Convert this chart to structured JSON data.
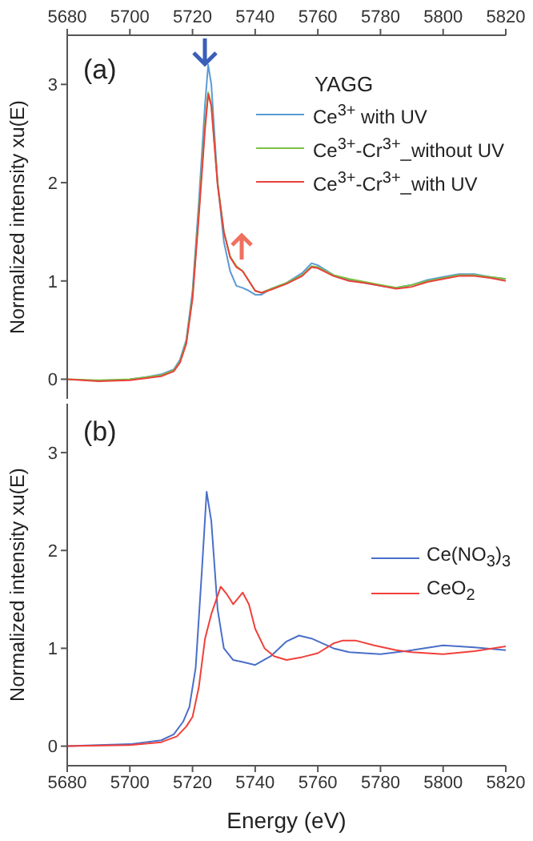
{
  "chart_data": [
    {
      "type": "line",
      "ylabel": "Normalized intensity xu(E)",
      "legend_title": "YAGG",
      "annotations": [
        "(a)"
      ],
      "xlim": [
        5680,
        5820
      ],
      "xticks": [
        5680,
        5700,
        5720,
        5740,
        5760,
        5780,
        5800,
        5820
      ],
      "tick_labels": "y",
      "x2lim": [
        5680,
        5820
      ],
      "x2ticks": [
        5680,
        5700,
        5720,
        5740,
        5760,
        5780,
        5800,
        5820
      ],
      "ylim": [
        -0.2,
        3.5
      ],
      "yticks": [
        0,
        1,
        2,
        3
      ],
      "legend": "top right",
      "series": [
        {
          "name": "Ce$^{3+}$ with UV",
          "color": "#5b9bd5",
          "x": [
            5700,
            5705,
            5710,
            5714,
            5716,
            5718,
            5720,
            5722,
            5724,
            5725,
            5726,
            5727,
            5728,
            5730,
            5732,
            5734,
            5736,
            5738,
            5740,
            5742,
            5745,
            5750,
            5755,
            5758,
            5760,
            5765,
            5770,
            5775,
            5780,
            5785,
            5790,
            5795,
            5800,
            5805,
            5810,
            5815,
            5820
          ],
          "values": [
            0,
            0.02,
            0.05,
            0.1,
            0.2,
            0.4,
            0.9,
            1.8,
            2.8,
            3.2,
            3.0,
            2.5,
            2.0,
            1.4,
            1.1,
            0.95,
            0.93,
            0.9,
            0.86,
            0.86,
            0.92,
            0.98,
            1.08,
            1.18,
            1.16,
            1.06,
            1.01,
            0.98,
            0.95,
            0.93,
            0.96,
            1.01,
            1.04,
            1.07,
            1.07,
            1.04,
            1.02
          ]
        },
        {
          "name": "Ce$^{3+}$-Cr$^{3+}$_without UV",
          "color": "#7ac143",
          "x": [
            5680,
            5690,
            5700,
            5705,
            5710,
            5714,
            5716,
            5718,
            5720,
            5722,
            5724,
            5725,
            5726,
            5727,
            5728,
            5730,
            5732,
            5734,
            5736,
            5738,
            5740,
            5742,
            5745,
            5750,
            5755,
            5758,
            5760,
            5765,
            5770,
            5775,
            5780,
            5785,
            5790,
            5795,
            5800,
            5805,
            5810,
            5815,
            5820
          ],
          "values": [
            0,
            -0.01,
            0,
            0.02,
            0.04,
            0.09,
            0.18,
            0.38,
            0.85,
            1.7,
            2.6,
            2.92,
            2.8,
            2.4,
            2.0,
            1.5,
            1.25,
            1.15,
            1.1,
            1.0,
            0.9,
            0.88,
            0.92,
            0.98,
            1.06,
            1.15,
            1.14,
            1.06,
            1.02,
            0.99,
            0.96,
            0.93,
            0.96,
            1.0,
            1.03,
            1.06,
            1.06,
            1.04,
            1.02
          ]
        },
        {
          "name": "Ce$^{3+}$-Cr$^{3+}$_with UV",
          "color": "#e8413c",
          "x": [
            5680,
            5690,
            5700,
            5705,
            5710,
            5714,
            5716,
            5718,
            5720,
            5722,
            5724,
            5725,
            5726,
            5727,
            5728,
            5730,
            5732,
            5734,
            5736,
            5738,
            5740,
            5742,
            5745,
            5750,
            5755,
            5758,
            5760,
            5765,
            5770,
            5775,
            5780,
            5785,
            5790,
            5795,
            5800,
            5805,
            5810,
            5815,
            5820
          ],
          "values": [
            0,
            -0.02,
            -0.01,
            0.01,
            0.03,
            0.08,
            0.17,
            0.36,
            0.82,
            1.65,
            2.55,
            2.9,
            2.78,
            2.38,
            1.98,
            1.5,
            1.24,
            1.14,
            1.1,
            1.0,
            0.9,
            0.88,
            0.91,
            0.97,
            1.05,
            1.14,
            1.13,
            1.05,
            1.0,
            0.98,
            0.95,
            0.92,
            0.94,
            0.99,
            1.02,
            1.05,
            1.05,
            1.03,
            1.0
          ]
        }
      ]
    },
    {
      "type": "line",
      "xlabel": "Energy (eV)",
      "ylabel": "Normalized intensity xu(E)",
      "annotations": [
        "(b)"
      ],
      "xlim": [
        5680,
        5820
      ],
      "xticks": [
        5680,
        5700,
        5720,
        5740,
        5760,
        5780,
        5800,
        5820
      ],
      "ylim": [
        -0.2,
        3.5
      ],
      "yticks": [
        0,
        1,
        2,
        3
      ],
      "legend": "right",
      "series": [
        {
          "name": "Ce(NO$_{3}$)$_{3}$",
          "color": "#4a6fc8",
          "x": [
            5680,
            5700,
            5710,
            5714,
            5717,
            5719,
            5721,
            5723,
            5724.5,
            5726,
            5728,
            5730,
            5733,
            5736,
            5740,
            5745,
            5750,
            5754,
            5758,
            5765,
            5770,
            5780,
            5790,
            5800,
            5810,
            5820
          ],
          "values": [
            0,
            0.02,
            0.06,
            0.12,
            0.25,
            0.4,
            0.8,
            1.8,
            2.6,
            2.3,
            1.4,
            1.0,
            0.88,
            0.86,
            0.83,
            0.92,
            1.07,
            1.13,
            1.1,
            1.0,
            0.96,
            0.94,
            0.98,
            1.03,
            1.01,
            0.98
          ]
        },
        {
          "name": "CeO$_{2}$",
          "color": "#f0403a",
          "x": [
            5680,
            5700,
            5710,
            5715,
            5718,
            5720,
            5722,
            5724,
            5726,
            5729,
            5731,
            5733,
            5736,
            5738,
            5740,
            5743,
            5746,
            5750,
            5755,
            5760,
            5765,
            5768,
            5772,
            5778,
            5785,
            5790,
            5800,
            5810,
            5820
          ],
          "values": [
            0,
            0.01,
            0.04,
            0.1,
            0.2,
            0.3,
            0.6,
            1.1,
            1.35,
            1.63,
            1.55,
            1.45,
            1.57,
            1.45,
            1.2,
            1.0,
            0.92,
            0.88,
            0.91,
            0.95,
            1.05,
            1.08,
            1.08,
            1.03,
            0.98,
            0.96,
            0.94,
            0.97,
            1.02
          ]
        }
      ]
    }
  ]
}
